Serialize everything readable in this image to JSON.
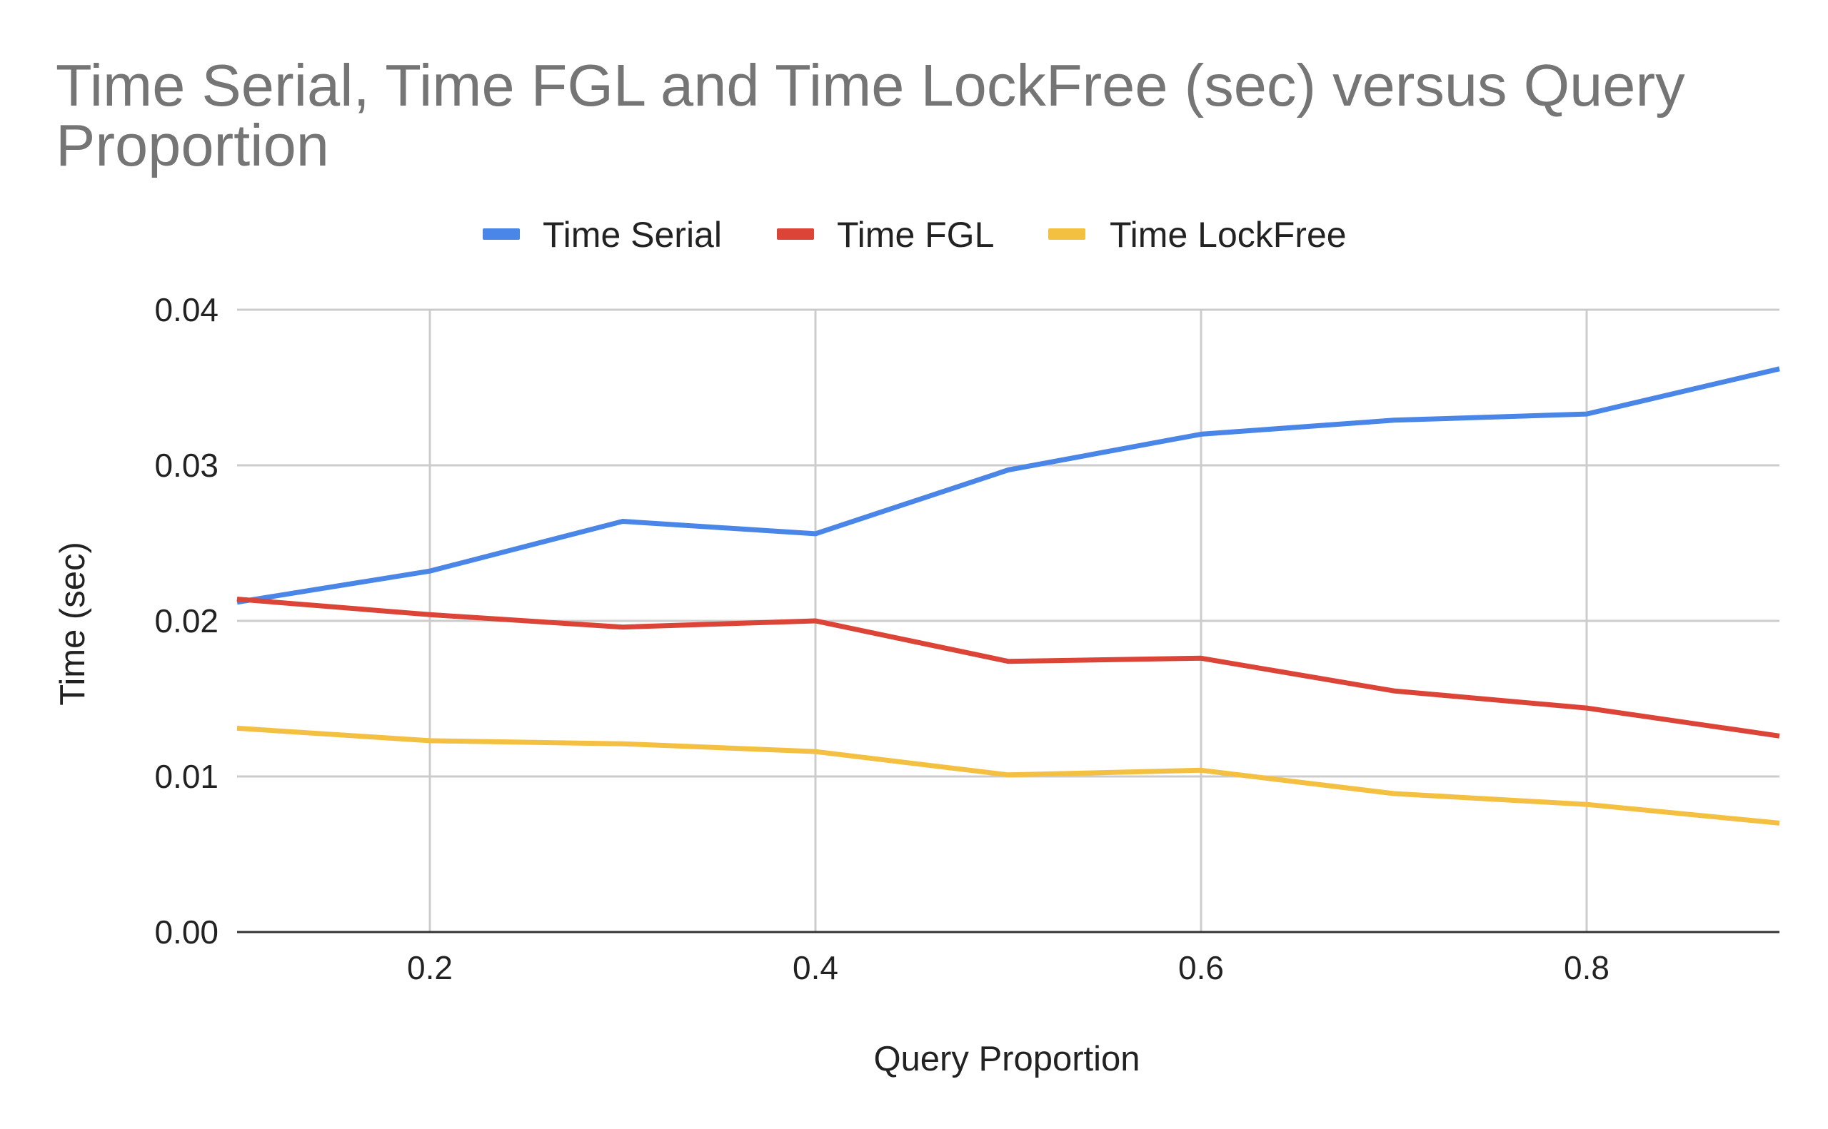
{
  "chart_data": {
    "type": "line",
    "title_line1": "Time Serial, Time FGL and Time LockFree (sec) versus Query",
    "title_line2": "Proportion",
    "xlabel": "Query Proportion",
    "ylabel": "Time (sec)",
    "xlim": [
      0.1,
      0.9
    ],
    "ylim": [
      0,
      0.04
    ],
    "x_ticks": [
      0.2,
      0.4,
      0.6,
      0.8
    ],
    "x_tick_labels": [
      "0.2",
      "0.4",
      "0.6",
      "0.8"
    ],
    "y_ticks": [
      0,
      0.01,
      0.02,
      0.03,
      0.04
    ],
    "y_tick_labels": [
      "0.00",
      "0.01",
      "0.02",
      "0.03",
      "0.04"
    ],
    "grid": true,
    "legend_position": "top",
    "x": [
      0.1,
      0.2,
      0.3,
      0.4,
      0.5,
      0.6,
      0.7,
      0.8,
      0.9
    ],
    "series": [
      {
        "name": "Time Serial",
        "color": "#4a86e8",
        "values": [
          0.0212,
          0.0232,
          0.0264,
          0.0256,
          0.0297,
          0.032,
          0.0329,
          0.0333,
          0.0362
        ]
      },
      {
        "name": "Time FGL",
        "color": "#db4437",
        "values": [
          0.0214,
          0.0204,
          0.0196,
          0.02,
          0.0174,
          0.0176,
          0.0155,
          0.0144,
          0.0126
        ]
      },
      {
        "name": "Time LockFree",
        "color": "#f4c042",
        "values": [
          0.0131,
          0.0123,
          0.0121,
          0.0116,
          0.0101,
          0.0104,
          0.0089,
          0.0082,
          0.007
        ]
      }
    ]
  }
}
